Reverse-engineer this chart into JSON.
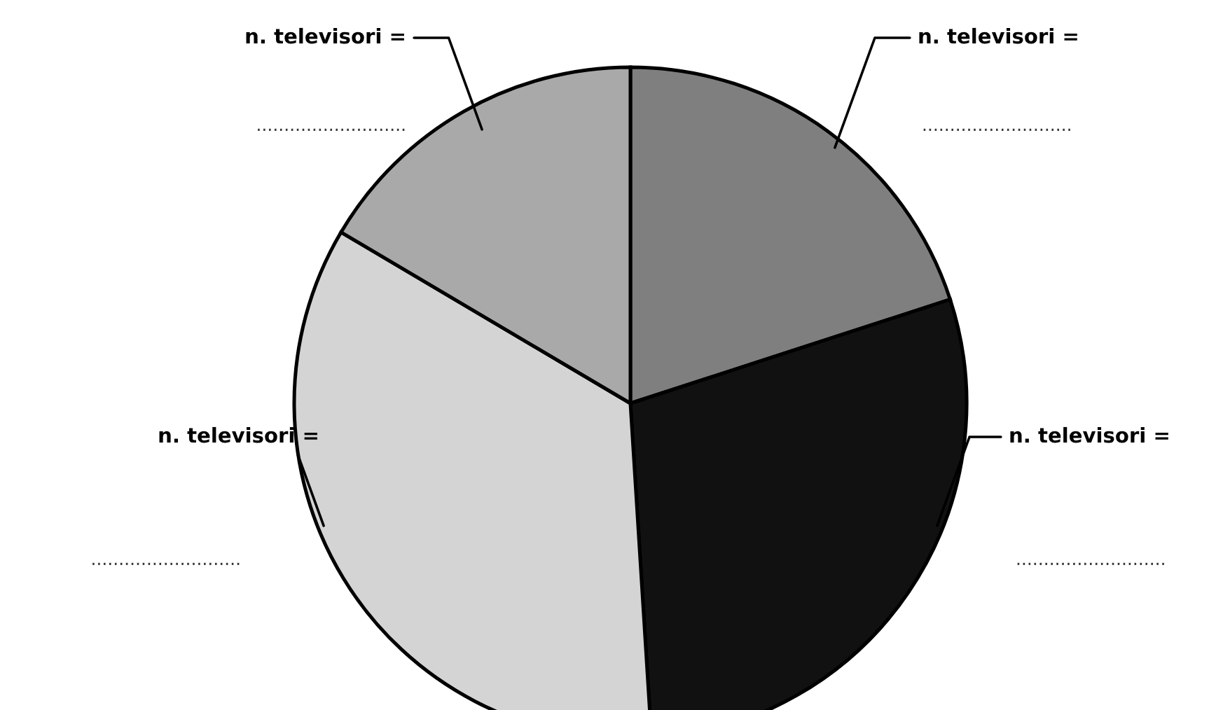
{
  "chart_data": {
    "type": "pie",
    "categories": [
      "n. televisori =",
      "n. televisori =",
      "n. televisori =",
      "n. televisori ="
    ],
    "values": [
      20,
      29,
      34.5,
      16.5
    ],
    "colors": [
      "#7f7f7f",
      "#111111",
      "#d4d4d4",
      "#a9a9a9"
    ],
    "annotations": [
      "...........................",
      "...........................",
      "...........................",
      "..........................."
    ]
  }
}
